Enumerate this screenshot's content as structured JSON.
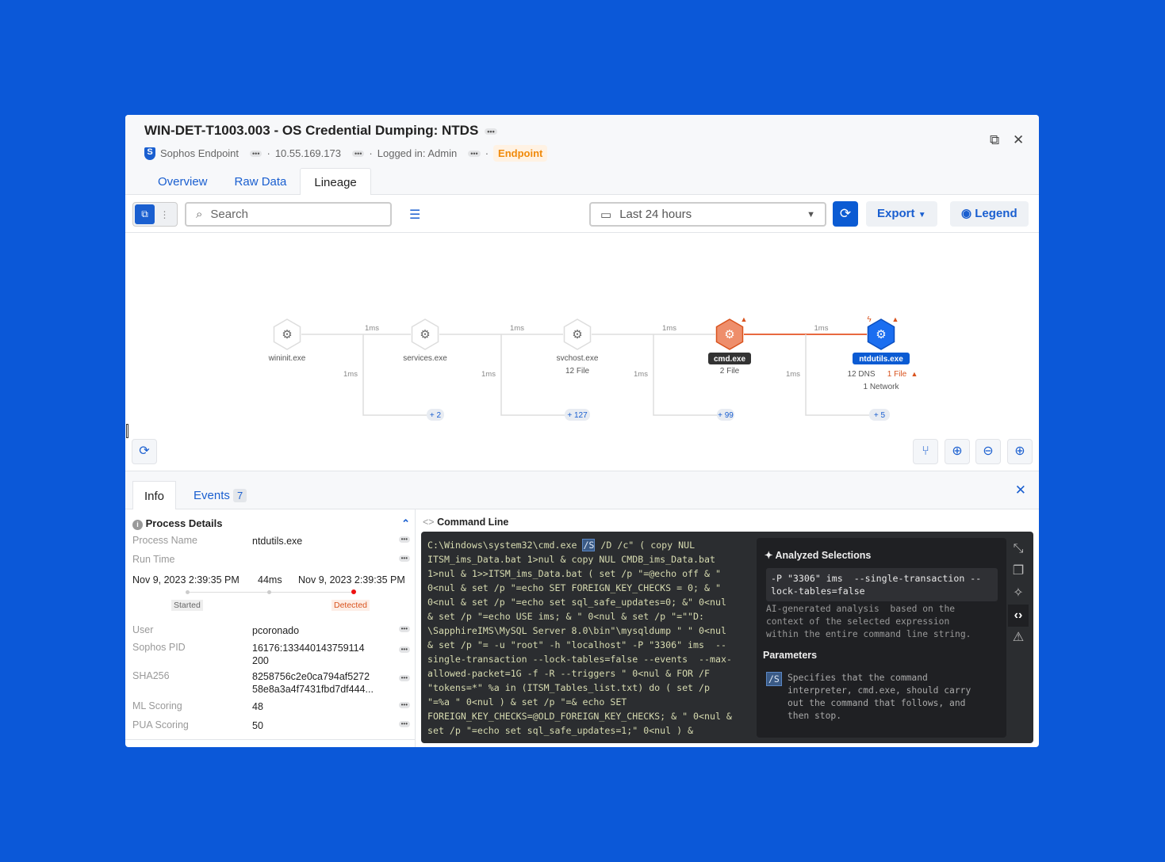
{
  "header": {
    "title": "WIN-DET-T1003.003 - OS Credential Dumping: NTDS",
    "source": "Sophos Endpoint",
    "ip": "10.55.169.173",
    "logged_in": "Logged in: Admin",
    "badge": "Endpoint",
    "more": "•••"
  },
  "tabs": [
    "Overview",
    "Raw Data",
    "Lineage"
  ],
  "toolbar": {
    "search_placeholder": "Search",
    "time_range": "Last 24 hours",
    "export": "Export",
    "legend": "Legend"
  },
  "graph": {
    "nodes": [
      {
        "name": "wininit.exe",
        "sub": ""
      },
      {
        "name": "services.exe",
        "sub": ""
      },
      {
        "name": "svchost.exe",
        "sub": "12 File"
      },
      {
        "name": "cmd.exe",
        "sub": "2 File",
        "state": "alert"
      },
      {
        "name": "ntdutils.exe",
        "sub": "12 DNS",
        "sub_alert": "1 File",
        "sub2": "1 Network",
        "state": "selected"
      }
    ],
    "edge_label": "1ms",
    "branches": [
      "+ 2",
      "+ 127",
      "+ 99",
      "+ 5"
    ]
  },
  "bottom": {
    "tabs": {
      "info": "Info",
      "events": "Events",
      "events_count": "7"
    },
    "process_details": {
      "title": "Process Details",
      "process_name_label": "Process Name",
      "process_name": "ntdutils.exe",
      "run_time_label": "Run Time",
      "start": "Nov 9, 2023 2:39:35 PM",
      "duration": "44ms",
      "end": "Nov 9, 2023 2:39:35 PM",
      "started": "Started",
      "detected": "Detected",
      "user_label": "User",
      "user": "pcoronado",
      "pid_label": "Sophos PID",
      "pid": "16176:133440143759114 200",
      "sha_label": "SHA256",
      "sha1": "8258756c2e0ca794af5272",
      "sha2": "58e8a3a4f7431fbd7df444...",
      "ml_label": "ML Scoring",
      "ml": "48",
      "pua_label": "PUA Scoring",
      "pua": "50"
    },
    "command_line": {
      "title": "Command Line",
      "first_pre": "C:\\Windows\\system32\\cmd.exe ",
      "first_sel": "/S",
      "first_post": " /D /c\" ( copy NUL",
      "lines": [
        "ITSM_ims_Data.bat 1>nul & copy NUL CMDB_ims_Data.bat",
        "1>nul & 1>>ITSM_ims_Data.bat ( set /p \"=@echo off & \"",
        "0<nul & set /p \"=echo SET FOREIGN_KEY_CHECKS = 0; & \"",
        "0<nul & set /p \"=echo set sql_safe_updates=0; &\" 0<nul",
        "& set /p \"=echo USE ims; & \" 0<nul & set /p \"=\"\"D:",
        "\\SapphireIMS\\MySQL Server 8.0\\bin\"\\mysqldump \" \" 0<nul",
        "& set /p \"= -u \"root\" -h \"localhost\" -P \"3306\" ims  --",
        "single-transaction --lock-tables=false --events  --max-",
        "allowed-packet=1G -f -R --triggers \" 0<nul & FOR /F",
        "\"tokens=*\" %a in (ITSM_Tables_list.txt) do ( set /p",
        "\"=%a \" 0<nul ) & set /p \"=& echo SET",
        "FOREIGN_KEY_CHECKS=@OLD_FOREIGN_KEY_CHECKS; & \" 0<nul &",
        "set /p \"=echo set sql_safe_updates=1;\" 0<nul ) &"
      ]
    },
    "analysis": {
      "title": "Analyzed Selections",
      "selection": "-P \"3306\" ims  --single-transaction --\nlock-tables=false",
      "description": "AI-generated analysis  based on the\ncontext of the selected expression\nwithin the entire command line string.",
      "params_title": "Parameters",
      "param_flag": "/S",
      "param_desc": "Specifies that the command\ninterpreter, cmd.exe, should carry\nout the command that follows, and\nthen stop."
    }
  },
  "colors": {
    "background": "#0b58d8",
    "accent": "#1a5fd0",
    "alert": "#e8693f",
    "endpoint_badge": "#f08a0b"
  }
}
